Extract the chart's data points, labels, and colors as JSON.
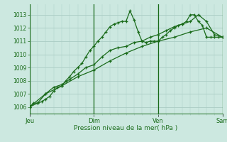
{
  "background_color": "#cce8e0",
  "grid_color": "#aaccc4",
  "line_color": "#1a6b1a",
  "marker_color": "#1a6b1a",
  "xlabel": "Pression niveau de la mer( hPa )",
  "ylim": [
    1005.5,
    1013.8
  ],
  "yticks": [
    1006,
    1007,
    1008,
    1009,
    1010,
    1011,
    1012,
    1013
  ],
  "day_labels": [
    "Jeu",
    "Dim",
    "Ven",
    "Sam"
  ],
  "day_positions": [
    0.0,
    0.333,
    0.667,
    1.0
  ],
  "vline_positions": [
    0.0,
    0.333,
    0.667,
    1.0
  ],
  "series1_x": [
    0.0,
    0.021,
    0.042,
    0.063,
    0.083,
    0.104,
    0.125,
    0.146,
    0.167,
    0.188,
    0.208,
    0.229,
    0.25,
    0.271,
    0.292,
    0.313,
    0.333,
    0.354,
    0.375,
    0.396,
    0.417,
    0.438,
    0.458,
    0.479,
    0.5,
    0.521,
    0.542,
    0.563,
    0.583,
    0.604,
    0.625,
    0.646,
    0.667,
    0.688,
    0.708,
    0.729,
    0.75,
    0.771,
    0.792,
    0.813,
    0.833,
    0.854,
    0.875,
    0.896,
    0.917,
    0.938,
    0.958,
    0.979,
    1.0
  ],
  "series1_y": [
    1006.0,
    1006.3,
    1006.3,
    1006.4,
    1006.6,
    1006.8,
    1007.2,
    1007.5,
    1007.6,
    1008.0,
    1008.3,
    1008.7,
    1009.0,
    1009.3,
    1009.8,
    1010.3,
    1010.6,
    1011.0,
    1011.3,
    1011.7,
    1012.1,
    1012.3,
    1012.4,
    1012.5,
    1012.5,
    1013.3,
    1012.6,
    1011.7,
    1011.0,
    1010.9,
    1011.0,
    1011.0,
    1011.0,
    1011.3,
    1011.5,
    1011.8,
    1012.0,
    1012.2,
    1012.3,
    1012.5,
    1013.0,
    1013.0,
    1012.5,
    1012.2,
    1011.3,
    1011.3,
    1011.3,
    1011.3,
    1011.3
  ],
  "series2_x": [
    0.0,
    0.042,
    0.083,
    0.125,
    0.167,
    0.208,
    0.25,
    0.292,
    0.333,
    0.375,
    0.417,
    0.458,
    0.5,
    0.542,
    0.583,
    0.625,
    0.667,
    0.708,
    0.75,
    0.792,
    0.833,
    0.875,
    0.917,
    0.958,
    1.0
  ],
  "series2_y": [
    1006.0,
    1006.3,
    1007.0,
    1007.5,
    1007.7,
    1008.1,
    1008.5,
    1009.0,
    1009.2,
    1009.8,
    1010.3,
    1010.5,
    1010.6,
    1010.9,
    1011.0,
    1011.3,
    1011.5,
    1011.8,
    1012.1,
    1012.3,
    1012.5,
    1013.0,
    1012.5,
    1011.5,
    1011.3
  ],
  "series3_x": [
    0.0,
    0.083,
    0.167,
    0.25,
    0.333,
    0.417,
    0.5,
    0.583,
    0.667,
    0.75,
    0.833,
    0.917,
    1.0
  ],
  "series3_y": [
    1006.0,
    1007.0,
    1007.6,
    1008.3,
    1008.8,
    1009.5,
    1010.1,
    1010.6,
    1011.0,
    1011.3,
    1011.7,
    1012.0,
    1011.3
  ]
}
